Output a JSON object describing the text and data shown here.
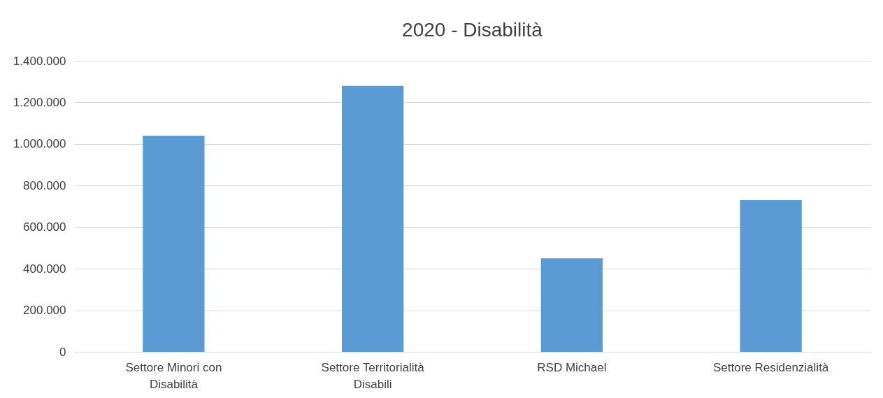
{
  "chart_data": {
    "type": "bar",
    "title": "2020 - Disabilità",
    "categories": [
      "Settore Minori con Disabilità",
      "Settore Territorialità Disabili",
      "RSD Michael",
      "Settore Residenzialità"
    ],
    "values": [
      1040000,
      1280000,
      450000,
      730000
    ],
    "color": "#5b9bd5",
    "ylim": [
      0,
      1400000
    ],
    "yticks": [
      0,
      {
        "value": 200000,
        "label": "200.000"
      },
      {
        "value": 400000,
        "label": "400.000"
      },
      {
        "value": 600000,
        "label": "600.000"
      },
      {
        "value": 800000,
        "label": "800.000"
      },
      {
        "value": 1000000,
        "label": "1.000.000"
      },
      {
        "value": 1200000,
        "label": "1.200.000"
      },
      {
        "value": 1400000,
        "label": "1.400.000"
      }
    ],
    "grid": "y"
  }
}
